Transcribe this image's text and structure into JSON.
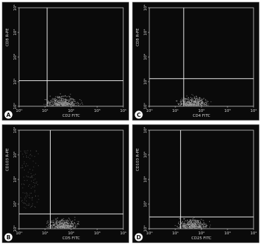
{
  "ticks": [
    "10⁰",
    "10¹",
    "10²",
    "10³",
    "10⁴"
  ],
  "panels": [
    {
      "letter": "A",
      "x_label": "CD2 FITC",
      "y_label": "CD8 R-PE"
    },
    {
      "letter": "C",
      "x_label": "CD4 FITC",
      "y_label": "CD8 R-PE"
    },
    {
      "letter": "B",
      "x_label": "CD5 FITC",
      "y_label": "CD103 R-PE"
    },
    {
      "letter": "D",
      "x_label": "CD25 FITC",
      "y_label": "CD103 R-PE"
    }
  ]
}
